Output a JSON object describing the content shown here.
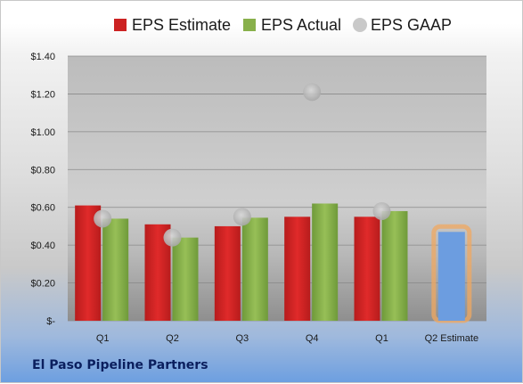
{
  "chart_data": {
    "type": "bar",
    "title": "",
    "xlabel": "",
    "ylabel": "",
    "categories": [
      "Q1",
      "Q2",
      "Q3",
      "Q4",
      "Q1",
      "Q2 Estimate"
    ],
    "series": [
      {
        "name": "EPS Estimate",
        "color": "#cc2222",
        "values": [
          0.61,
          0.51,
          0.5,
          0.55,
          0.55,
          null
        ]
      },
      {
        "name": "EPS Actual",
        "color": "#88b04b",
        "values": [
          0.54,
          0.44,
          0.545,
          0.62,
          0.58,
          null
        ]
      },
      {
        "name": "EPS GAAP",
        "color": "#c9c9c9",
        "type": "scatter",
        "values": [
          0.54,
          0.44,
          0.55,
          1.21,
          0.58,
          null
        ]
      }
    ],
    "forecast": {
      "category": "Q2 Estimate",
      "value": 0.47,
      "color": "#6c9de0",
      "outline": "#f0a860"
    },
    "ylim": [
      0,
      1.4
    ],
    "yticks": [
      0,
      0.2,
      0.4,
      0.6,
      0.8,
      1.0,
      1.2,
      1.4
    ],
    "ytick_labels": [
      "$-",
      "$0.20",
      "$0.40",
      "$0.60",
      "$0.80",
      "$1.00",
      "$1.20",
      "$1.40"
    ],
    "grid": true,
    "legend_position": "top"
  },
  "footer": {
    "company": "El Paso Pipeline Partners"
  }
}
